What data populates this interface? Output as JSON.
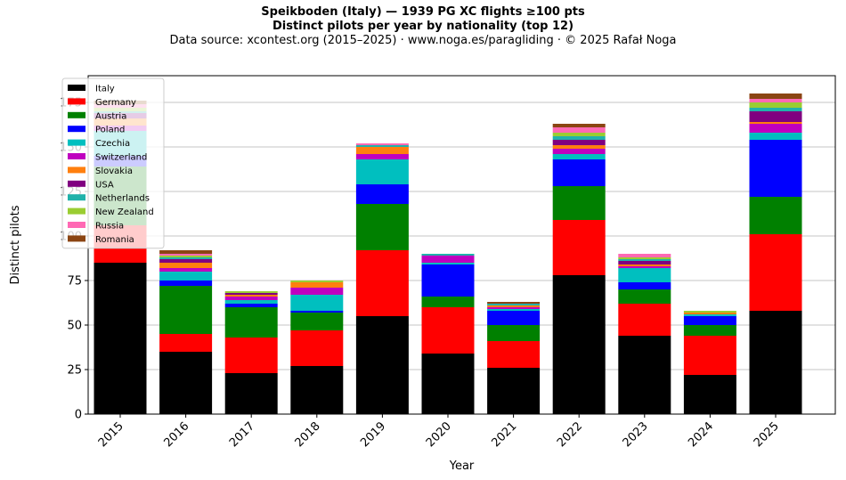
{
  "title_line1": "Speikboden (Italy)  —  1939 PG XC flights ≥100 pts",
  "title_line2": "Distinct pilots per year by nationality (top 12)",
  "subtitle": "Data source: xcontest.org (2015–2025)  ·  www.noga.es/paragliding  ·  © 2025 Rafał Noga",
  "chart_data": {
    "type": "bar",
    "stacked": true,
    "xlabel": "Year",
    "ylabel": "Distinct pilots",
    "ylim": [
      0,
      190
    ],
    "yticks": [
      0,
      25,
      50,
      75,
      100,
      125,
      150,
      175
    ],
    "grid": "horizontal",
    "legend_position": "top-left",
    "categories": [
      "2015",
      "2016",
      "2017",
      "2018",
      "2019",
      "2020",
      "2021",
      "2022",
      "2023",
      "2024",
      "2025"
    ],
    "series": [
      {
        "name": "Italy",
        "color": "#000000",
        "values": [
          85,
          35,
          23,
          27,
          55,
          34,
          26,
          78,
          44,
          22,
          58
        ]
      },
      {
        "name": "Germany",
        "color": "#ff0000",
        "values": [
          21,
          10,
          20,
          20,
          37,
          26,
          15,
          31,
          18,
          22,
          43
        ]
      },
      {
        "name": "Austria",
        "color": "#008000",
        "values": [
          33,
          27,
          17,
          10,
          26,
          6,
          9,
          19,
          8,
          6,
          21
        ]
      },
      {
        "name": "Poland",
        "color": "#0000ff",
        "values": [
          6,
          3,
          2,
          1,
          11,
          18,
          8,
          15,
          4,
          5,
          32
        ]
      },
      {
        "name": "Czechia",
        "color": "#00bfbf",
        "values": [
          14,
          5,
          2,
          9,
          14,
          1,
          1,
          3,
          8,
          1,
          4
        ]
      },
      {
        "name": "Switzerland",
        "color": "#bf00bf",
        "values": [
          3,
          2,
          2,
          4,
          3,
          4,
          1,
          3,
          1,
          0,
          5
        ]
      },
      {
        "name": "Slovakia",
        "color": "#ff7f0e",
        "values": [
          4,
          3,
          1,
          3,
          4,
          0,
          1,
          2,
          1,
          1,
          1
        ]
      },
      {
        "name": "USA",
        "color": "#800080",
        "values": [
          3,
          2,
          1,
          0,
          0,
          0,
          0,
          3,
          2,
          0,
          6
        ]
      },
      {
        "name": "Netherlands",
        "color": "#20b2aa",
        "values": [
          1,
          1,
          0,
          0,
          1,
          1,
          1,
          2,
          1,
          0,
          2
        ]
      },
      {
        "name": "New Zealand",
        "color": "#9acd32",
        "values": [
          2,
          1,
          1,
          1,
          0,
          0,
          0,
          2,
          1,
          1,
          3
        ]
      },
      {
        "name": "Russia",
        "color": "#ff69b4",
        "values": [
          2,
          1,
          0,
          0,
          1,
          0,
          0,
          3,
          2,
          0,
          2
        ]
      },
      {
        "name": "Romania",
        "color": "#8b4513",
        "values": [
          2,
          2,
          0,
          0,
          0,
          0,
          1,
          2,
          0,
          0,
          3
        ]
      }
    ]
  }
}
